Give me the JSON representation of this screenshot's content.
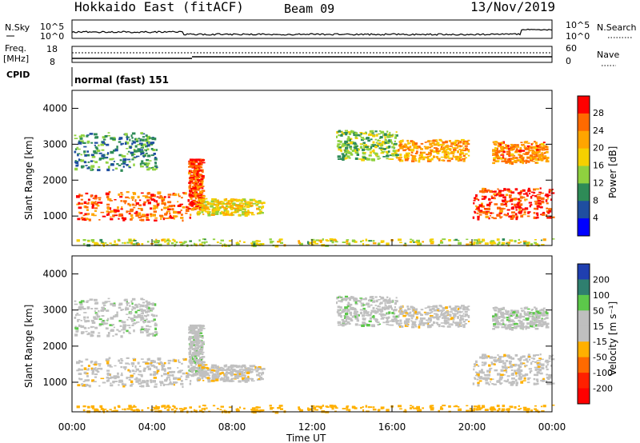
{
  "header": {
    "station": "Hokkaido East (fitACF)",
    "beam": "Beam 09",
    "date": "13/Nov/2019"
  },
  "sky_panel": {
    "left_label": "N.Sky",
    "right_label": "N.Search",
    "ticks_left": [
      "10^5",
      "10^0"
    ],
    "ticks_right": [
      "10^5",
      "10^0"
    ]
  },
  "freq_panel": {
    "left_label_line1": "Freq.",
    "left_label_line2": "[MHz]",
    "right_label": "Nave",
    "ticks_left": [
      "18",
      "8"
    ],
    "ticks_right": [
      "60",
      "0"
    ]
  },
  "cpid_panel": {
    "label": "CPID",
    "text": "normal (fast) 151"
  },
  "power_panel": {
    "ylabel": "Slant Range [km]",
    "yticks": [
      "4000",
      "3000",
      "2000",
      "1000"
    ],
    "colorbar_label": "Power [dB]",
    "colorbar_ticks": [
      "28",
      "24",
      "20",
      "16",
      "12",
      "8",
      "4"
    ],
    "colorbar_colors": [
      "#ff0000",
      "#ff6a00",
      "#ffa500",
      "#f5d000",
      "#8fd13f",
      "#2e8b57",
      "#1f4ea0",
      "#0000ff"
    ]
  },
  "velocity_panel": {
    "ylabel": "Slant Range [km]",
    "yticks": [
      "4000",
      "3000",
      "2000",
      "1000"
    ],
    "colorbar_label": "Velocity [m s⁻¹]",
    "colorbar_ticks": [
      "200",
      "100",
      "50",
      "15",
      "-15",
      "-50",
      "-100",
      "-200"
    ],
    "colorbar_colors": [
      "#1f3fb0",
      "#2f7f6f",
      "#5cc84a",
      "#bfbfbf",
      "#bfbfbf",
      "#ffb000",
      "#ff6a00",
      "#ff2000",
      "#ff0000"
    ]
  },
  "x_axis": {
    "label": "Time UT",
    "ticks": [
      "00:00",
      "04:00",
      "08:00",
      "12:00",
      "16:00",
      "20:00",
      "00:00"
    ]
  },
  "chart_data": {
    "type": "heatmap",
    "title": "Hokkaido East (fitACF)",
    "xlabel": "Time UT",
    "ylabel": "Slant Range [km]",
    "x_range_hours": [
      0,
      24
    ],
    "y_range_km": [
      180,
      4500
    ],
    "panels": [
      "Power [dB]",
      "Velocity [m s⁻¹]"
    ],
    "echo_regions": [
      {
        "t0": 0.1,
        "t1": 4.2,
        "r0": 2300,
        "r1": 3350,
        "power_db": 10,
        "velocity": 15
      },
      {
        "t0": 0.1,
        "t1": 5.9,
        "r0": 900,
        "r1": 1700,
        "power_db": 26,
        "velocity": -15
      },
      {
        "t0": 5.8,
        "t1": 6.5,
        "r0": 1200,
        "r1": 2600,
        "power_db": 28,
        "velocity": 15
      },
      {
        "t0": 6.2,
        "t1": 9.5,
        "r0": 1050,
        "r1": 1500,
        "power_db": 18,
        "velocity": -15
      },
      {
        "t0": 13.2,
        "t1": 16.2,
        "r0": 2600,
        "r1": 3400,
        "power_db": 14,
        "velocity": 15
      },
      {
        "t0": 16.2,
        "t1": 19.8,
        "r0": 2550,
        "r1": 3150,
        "power_db": 22,
        "velocity": -15
      },
      {
        "t0": 20.0,
        "t1": 24.0,
        "r0": 950,
        "r1": 1800,
        "power_db": 28,
        "velocity": -15
      },
      {
        "t0": 21.0,
        "t1": 23.7,
        "r0": 2500,
        "r1": 3100,
        "power_db": 24,
        "velocity": 15
      },
      {
        "t0": 0.0,
        "t1": 24.0,
        "r0": 200,
        "r1": 380,
        "power_db": 16,
        "velocity": -50
      }
    ]
  }
}
